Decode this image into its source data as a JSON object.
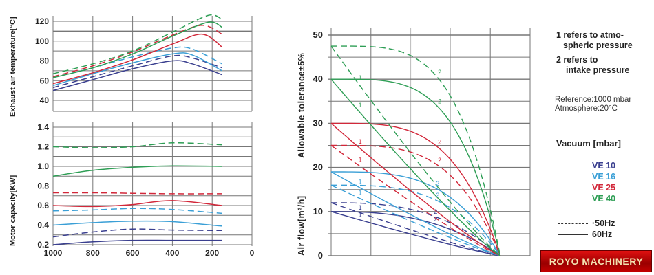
{
  "colors": {
    "VE 10": "#3a3f8f",
    "VE 16": "#3a9fd6",
    "VE 25": "#d2283a",
    "VE 40": "#2e9e55",
    "grid": "#888888",
    "text": "#222222"
  },
  "chart_data": [
    {
      "type": "line",
      "title": "",
      "ylabel": "Exhaust air temperature[°C]",
      "xlabel": "",
      "xlim": [
        1000,
        0
      ],
      "ylim": [
        30,
        125
      ],
      "yticks": [
        "120",
        "100",
        "80",
        "60",
        "40"
      ],
      "ytick_values": [
        120,
        100,
        80,
        60,
        40
      ],
      "grid": true,
      "series": [
        {
          "name": "VE 10 60Hz",
          "group": "VE 10",
          "style": "solid",
          "x": [
            1000,
            800,
            600,
            400,
            300,
            150
          ],
          "y": [
            50,
            61,
            72,
            80,
            77,
            66
          ]
        },
        {
          "name": "VE 10 50Hz",
          "group": "VE 10",
          "style": "dashed",
          "x": [
            1000,
            800,
            600,
            400,
            300,
            150
          ],
          "y": [
            53,
            64,
            75,
            85,
            83,
            73
          ]
        },
        {
          "name": "VE 16 60Hz",
          "group": "VE 16",
          "style": "solid",
          "x": [
            1000,
            800,
            600,
            400,
            300,
            150
          ],
          "y": [
            55,
            67,
            78,
            87,
            86,
            70
          ]
        },
        {
          "name": "VE 16 50Hz",
          "group": "VE 16",
          "style": "dashed",
          "x": [
            1000,
            800,
            600,
            400,
            300,
            150
          ],
          "y": [
            63,
            73,
            84,
            93,
            92,
            77
          ]
        },
        {
          "name": "VE 25 60Hz",
          "group": "VE 25",
          "style": "solid",
          "x": [
            1000,
            800,
            600,
            400,
            250,
            150
          ],
          "y": [
            57,
            68,
            81,
            97,
            107,
            94
          ]
        },
        {
          "name": "VE 25 50Hz",
          "group": "VE 25",
          "style": "dashed",
          "x": [
            1000,
            800,
            600,
            400,
            250,
            150
          ],
          "y": [
            64,
            75,
            89,
            106,
            116,
            107
          ]
        },
        {
          "name": "VE 40 60Hz",
          "group": "VE 40",
          "style": "solid",
          "x": [
            1000,
            800,
            600,
            400,
            220,
            150
          ],
          "y": [
            63,
            73,
            87,
            105,
            119,
            114
          ]
        },
        {
          "name": "VE 40 50Hz",
          "group": "VE 40",
          "style": "dashed",
          "x": [
            1000,
            800,
            600,
            400,
            220,
            150
          ],
          "y": [
            67,
            77,
            90,
            109,
            126,
            122
          ]
        }
      ]
    },
    {
      "type": "line",
      "title": "",
      "ylabel": "Motor capacity[KW]",
      "xlabel": "",
      "xlim": [
        1000,
        0
      ],
      "ylim": [
        0.2,
        1.4
      ],
      "xticks": [
        "1000",
        "800",
        "600",
        "400",
        "200",
        "0"
      ],
      "xtick_values": [
        1000,
        800,
        600,
        400,
        200,
        0
      ],
      "yticks": [
        "1.4",
        "1.2",
        "1.0",
        "0.8",
        "0.6",
        "0.4",
        "0.2"
      ],
      "ytick_values": [
        1.4,
        1.2,
        1.0,
        0.8,
        0.6,
        0.4,
        0.2
      ],
      "grid": true,
      "series": [
        {
          "name": "VE 10 60Hz",
          "group": "VE 10",
          "style": "solid",
          "x": [
            1000,
            800,
            600,
            400,
            150
          ],
          "y": [
            0.2,
            0.23,
            0.245,
            0.245,
            0.245
          ]
        },
        {
          "name": "VE 10 50Hz",
          "group": "VE 10",
          "style": "dashed",
          "x": [
            1000,
            800,
            600,
            400,
            150
          ],
          "y": [
            0.28,
            0.33,
            0.36,
            0.35,
            0.345
          ]
        },
        {
          "name": "VE 16 60Hz",
          "group": "VE 16",
          "style": "solid",
          "x": [
            1000,
            800,
            600,
            400,
            150
          ],
          "y": [
            0.4,
            0.425,
            0.44,
            0.435,
            0.39
          ]
        },
        {
          "name": "VE 16 50Hz",
          "group": "VE 16",
          "style": "dashed",
          "x": [
            1000,
            800,
            600,
            400,
            150
          ],
          "y": [
            0.545,
            0.555,
            0.57,
            0.56,
            0.52
          ]
        },
        {
          "name": "VE 25 60Hz",
          "group": "VE 25",
          "style": "solid",
          "x": [
            1000,
            800,
            600,
            400,
            150
          ],
          "y": [
            0.6,
            0.59,
            0.61,
            0.65,
            0.6
          ]
        },
        {
          "name": "VE 25 50Hz",
          "group": "VE 25",
          "style": "dashed",
          "x": [
            1000,
            800,
            600,
            400,
            150
          ],
          "y": [
            0.73,
            0.73,
            0.725,
            0.72,
            0.72
          ]
        },
        {
          "name": "VE 40 60Hz",
          "group": "VE 40",
          "style": "solid",
          "x": [
            1000,
            800,
            600,
            400,
            150
          ],
          "y": [
            0.9,
            0.96,
            0.99,
            1.005,
            1.0
          ]
        },
        {
          "name": "VE 40 50Hz",
          "group": "VE 40",
          "style": "dashed",
          "x": [
            1000,
            800,
            600,
            400,
            150
          ],
          "y": [
            1.2,
            1.19,
            1.2,
            1.24,
            1.22
          ]
        }
      ]
    },
    {
      "type": "line",
      "title": "",
      "ylabel": "Air flow[m³/h]   Allowable tolerance±5%",
      "ylabel_lower": "Air flow[m³/h]",
      "ylabel_upper": "Allowable tolerance±5%",
      "xlim": [
        0,
        5
      ],
      "ylim": [
        0,
        50
      ],
      "yticks": [
        "50",
        "40",
        "30",
        "20",
        "10",
        "0"
      ],
      "ytick_values": [
        50,
        40,
        30,
        20,
        10,
        0
      ],
      "grid": true,
      "series": [
        {
          "name": "VE 10 60Hz 1",
          "group": "VE 10",
          "style": "solid",
          "curve": "1",
          "start": 10,
          "bulge": 0.0,
          "label_x": 0.65
        },
        {
          "name": "VE 10 60Hz 2",
          "group": "VE 10",
          "style": "solid",
          "curve": "2",
          "start": 10,
          "bulge": 0.5,
          "label_x": 2.55
        },
        {
          "name": "VE 10 50Hz 1",
          "group": "VE 10",
          "style": "dashed",
          "curve": "1",
          "start": 12,
          "bulge": 0.1,
          "label_x": 0.65
        },
        {
          "name": "VE 10 50Hz 2",
          "group": "VE 10",
          "style": "dashed",
          "curve": "2",
          "start": 12,
          "bulge": 0.55,
          "label_x": 2.55
        },
        {
          "name": "VE 16 60Hz 1",
          "group": "VE 16",
          "style": "solid",
          "curve": "1",
          "start": 19,
          "bulge": 0.0,
          "label_x": 0.65
        },
        {
          "name": "VE 16 60Hz 2",
          "group": "VE 16",
          "style": "solid",
          "curve": "2",
          "start": 19,
          "bulge": 0.75,
          "label_x": 2.6
        },
        {
          "name": "VE 16 50Hz 1",
          "group": "VE 16",
          "style": "dashed",
          "curve": "1",
          "start": 16,
          "bulge": 0.0,
          "label_x": 0.65
        },
        {
          "name": "VE 16 50Hz 2",
          "group": "VE 16",
          "style": "dashed",
          "curve": "2",
          "start": 16,
          "bulge": 0.7,
          "label_x": 2.6
        },
        {
          "name": "VE 25 60Hz 1",
          "group": "VE 25",
          "style": "solid",
          "curve": "1",
          "start": 30,
          "bulge": 0.0,
          "label_x": 0.65
        },
        {
          "name": "VE 25 60Hz 2",
          "group": "VE 25",
          "style": "solid",
          "curve": "2",
          "start": 30,
          "bulge": 0.85,
          "label_x": 2.65
        },
        {
          "name": "VE 25 50Hz 1",
          "group": "VE 25",
          "style": "dashed",
          "curve": "1",
          "start": 25,
          "bulge": 0.0,
          "label_x": 0.65
        },
        {
          "name": "VE 25 50Hz 2",
          "group": "VE 25",
          "style": "dashed",
          "curve": "2",
          "start": 25,
          "bulge": 0.85,
          "label_x": 2.65
        },
        {
          "name": "VE 40 60Hz 1",
          "group": "VE 40",
          "style": "solid",
          "curve": "1",
          "start": 40,
          "bulge": 0.0,
          "label_x": 0.65
        },
        {
          "name": "VE 40 60Hz 2",
          "group": "VE 40",
          "style": "solid",
          "curve": "2",
          "start": 40,
          "bulge": 0.95,
          "label_x": 2.65
        },
        {
          "name": "VE 40 50Hz 1",
          "group": "VE 40",
          "style": "dashed",
          "curve": "1",
          "start": 47.5,
          "bulge": 0.0,
          "label_x": 0.65
        },
        {
          "name": "VE 40 50Hz 2",
          "group": "VE 40",
          "style": "dashed",
          "curve": "2",
          "start": 47.5,
          "bulge": 0.97,
          "label_x": 2.65
        }
      ],
      "convergence_x": 4.25
    }
  ],
  "notes": {
    "note1_line1": "1 refers to atmo-",
    "note1_line2": "spheric pressure",
    "note2_line1": "2  refers to",
    "note2_line2": "intake  pressure",
    "reference": "Reference:1000 mbar",
    "atmosphere": "Atmosphere:20°C"
  },
  "legend": {
    "title": "Vacuum [mbar]",
    "items": [
      {
        "label": "VE 10",
        "color": "#3a3f8f"
      },
      {
        "label": "VE 16",
        "color": "#3a9fd6"
      },
      {
        "label": "VE 25",
        "color": "#d2283a"
      },
      {
        "label": "VE 40",
        "color": "#2e9e55"
      }
    ],
    "freq": [
      {
        "label": "·50Hz",
        "style": "dashed"
      },
      {
        "label": "60Hz",
        "style": "solid"
      }
    ]
  },
  "brand": "ROYO MACHINERY"
}
